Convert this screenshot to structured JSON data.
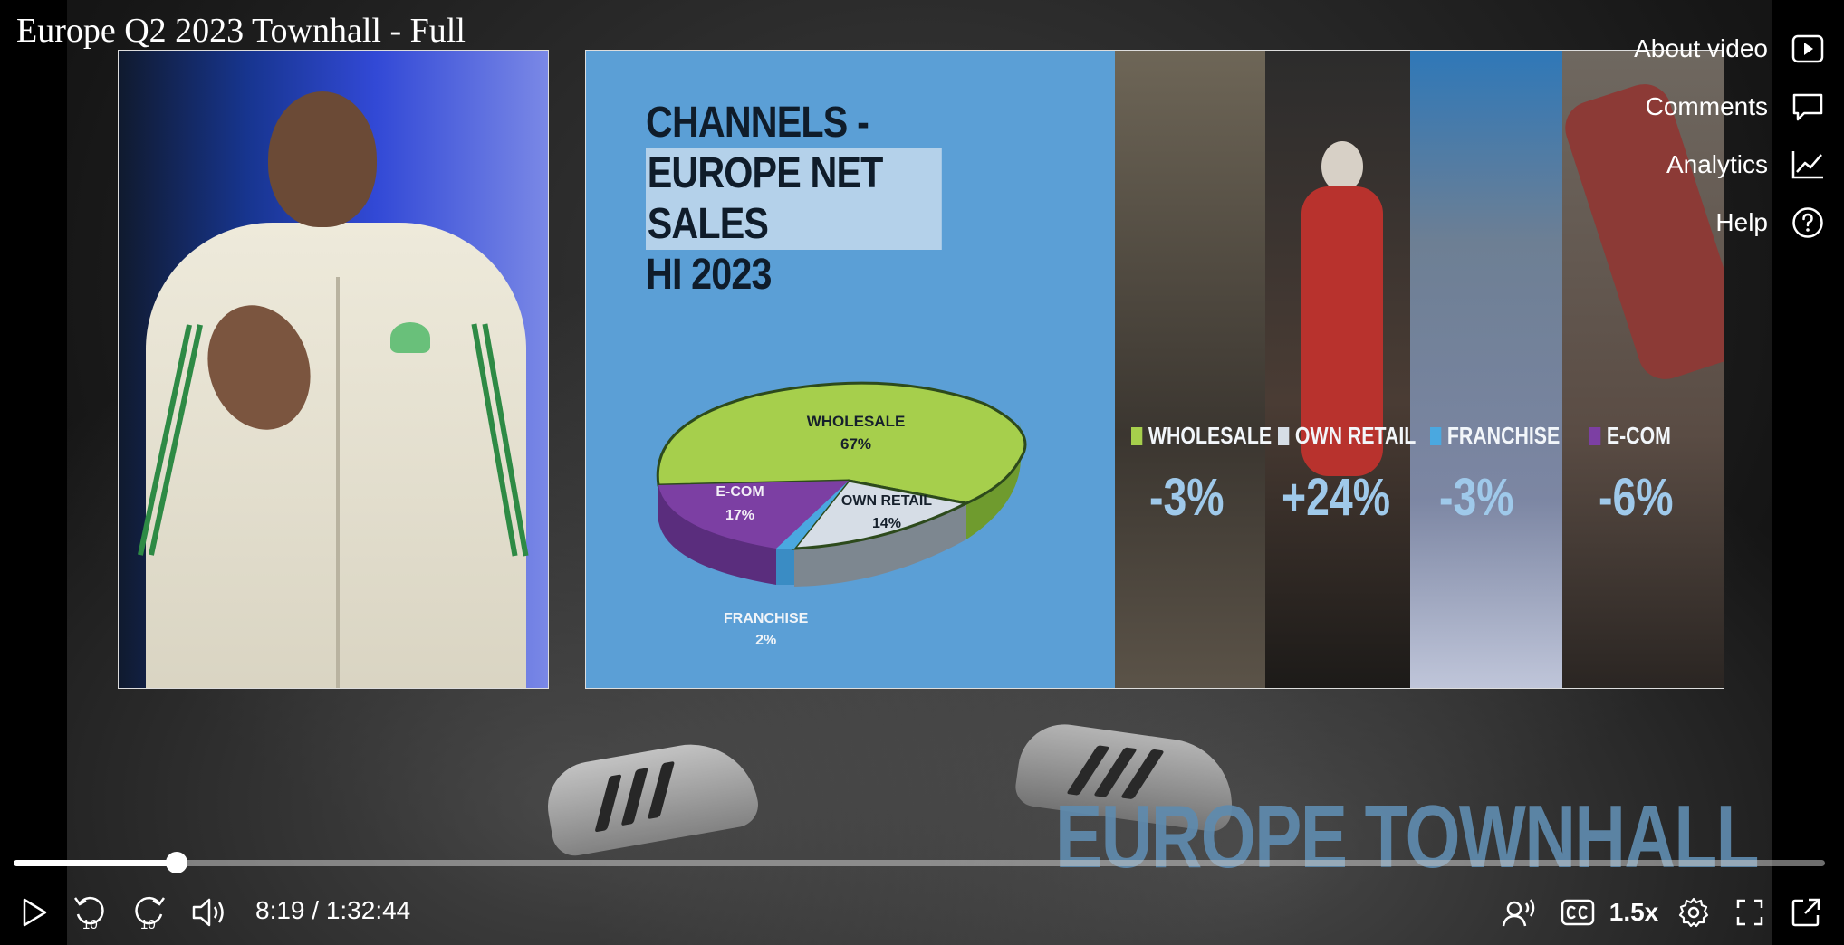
{
  "video": {
    "title": "Europe Q2 2023 Townhall - Full",
    "background_watermark": "EUROPE TOWNHALL",
    "elapsed": "8:19",
    "duration": "1:32:44",
    "time_display": "8:19 / 1:32:44",
    "progress_fraction": 0.09,
    "playback_speed": "1.5x"
  },
  "side_menu": {
    "items": [
      {
        "label": "About video",
        "icon": "play-box-icon"
      },
      {
        "label": "Comments",
        "icon": "comment-icon"
      },
      {
        "label": "Analytics",
        "icon": "chart-line-icon"
      },
      {
        "label": "Help",
        "icon": "help-circle-icon"
      }
    ]
  },
  "slide": {
    "title_lines": [
      "CHANNELS -",
      "EUROPE NET SALES",
      "HI 2023"
    ],
    "pie_labels": {
      "wholesale": {
        "name": "WHOLESALE",
        "value": "67%"
      },
      "ecom": {
        "name": "E-COM",
        "value": "17%"
      },
      "own_retail": {
        "name": "OWN RETAIL",
        "value": "14%"
      },
      "franchise": {
        "name": "FRANCHISE",
        "value": "2%"
      }
    },
    "channels": [
      {
        "name": "WHOLESALE",
        "change": "-3%",
        "color": "#a6cf4c"
      },
      {
        "name": "OWN RETAIL",
        "change": "+24%",
        "color": "#d6dde6"
      },
      {
        "name": "FRANCHISE",
        "change": "-3%",
        "color": "#4aa8e0"
      },
      {
        "name": "E-COM",
        "change": "-6%",
        "color": "#7c3fa3"
      }
    ]
  },
  "controls": {
    "icons": [
      "play-icon",
      "rewind-10-icon",
      "forward-10-icon",
      "volume-icon",
      "audio-description-icon",
      "captions-icon",
      "settings-gear-icon",
      "fullscreen-icon",
      "popout-icon"
    ],
    "skip_seconds": "10"
  }
}
